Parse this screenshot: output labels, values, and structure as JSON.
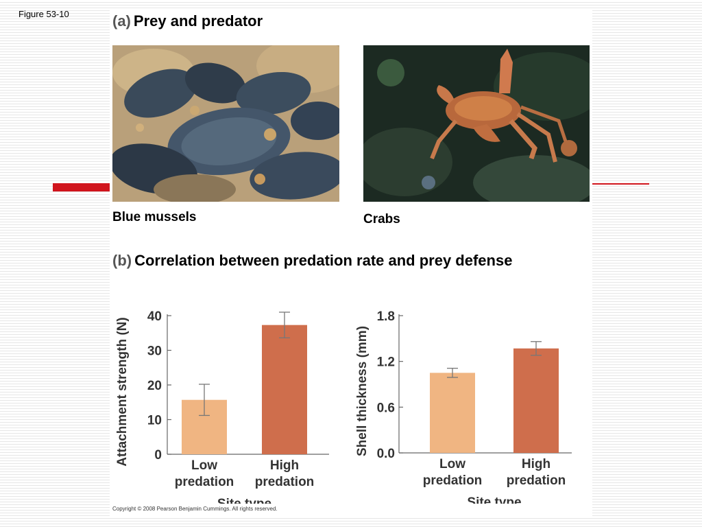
{
  "figure_label": "Figure 53-10",
  "panel_a": {
    "letter": "(a)",
    "title": "Prey and predator",
    "photos": [
      {
        "caption": "Blue mussels",
        "icon": "mussel-photo"
      },
      {
        "caption": "Crabs",
        "icon": "crab-photo"
      }
    ]
  },
  "panel_b": {
    "letter": "(b)",
    "title": "Correlation between predation rate and prey defense"
  },
  "copyright": "Copyright © 2008 Pearson Benjamin Cummings. All rights reserved.",
  "colors": {
    "accent_red": "#d0141c",
    "low_bar": "#f0b582",
    "high_bar": "#cf6e4c"
  },
  "chart_data": [
    {
      "type": "bar",
      "categories": [
        [
          "Low",
          "predation"
        ],
        [
          "High",
          "predation"
        ]
      ],
      "values": [
        15.7,
        37.3
      ],
      "errors": [
        4.5,
        3.7
      ],
      "xlabel": "Site type",
      "ylabel": "Attachment strength (N)",
      "ylim": [
        0,
        40
      ],
      "yticks": [
        0,
        10,
        20,
        30,
        40
      ],
      "tick_labels": [
        "0",
        "10",
        "20",
        "30",
        "40"
      ],
      "grid": false
    },
    {
      "type": "bar",
      "categories": [
        [
          "Low",
          "predation"
        ],
        [
          "High",
          "predation"
        ]
      ],
      "values": [
        1.05,
        1.37
      ],
      "errors": [
        0.06,
        0.09
      ],
      "xlabel": "Site type",
      "ylabel": "Shell thickness (mm)",
      "ylim": [
        0,
        1.8
      ],
      "yticks": [
        0,
        0.6,
        1.2,
        1.8
      ],
      "tick_labels": [
        "0.0",
        "0.6",
        "1.2",
        "1.8"
      ],
      "grid": false
    }
  ]
}
